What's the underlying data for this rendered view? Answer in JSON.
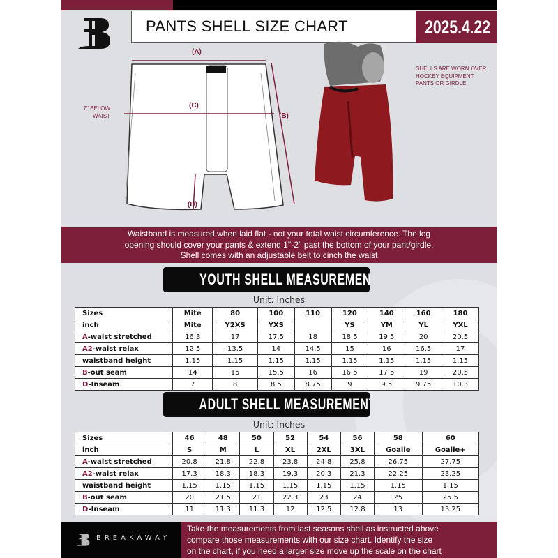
{
  "header": {
    "title": "PANTS SHELL SIZE CHART",
    "date": "2025.4.22"
  },
  "diagram": {
    "label_a": "(A)",
    "label_b": "(B)",
    "label_c": "(C)",
    "label_d": "(D)",
    "below_waist_note": "7'' BELOW WAIST"
  },
  "photo": {
    "note": "SHELLS ARE WORN OVER HOCKEY EQUIPMENT PANTS OR GIRDLE"
  },
  "info_band": {
    "lines": [
      "Waistband is measured when laid flat - not your total waist circumference. The leg",
      "opening should cover your pants & extend 1''-2'' past the bottom of your pant/girdle.",
      "Shell comes with an adjustable belt to cinch the waist"
    ]
  },
  "youth": {
    "heading": "YOUTH SHELL MEASUREMENTS",
    "unit": "Unit: Inches",
    "rows": [
      {
        "prefix": "",
        "label": "Sizes",
        "values": [
          "Mite",
          "80",
          "100",
          "110",
          "120",
          "140",
          "160",
          "180"
        ]
      },
      {
        "prefix": "",
        "label": "inch",
        "values": [
          "Mite",
          "Y2XS",
          "YXS",
          "",
          "YS",
          "YM",
          "YL",
          "YXL"
        ]
      },
      {
        "prefix": "A",
        "label": "-waist stretched",
        "values": [
          "16.3",
          "17",
          "17.5",
          "18",
          "18.5",
          "19.5",
          "20",
          "20.5"
        ]
      },
      {
        "prefix": "A2",
        "label": "-waist relax",
        "values": [
          "12.5",
          "13.5",
          "14",
          "14.5",
          "15",
          "16",
          "16.5",
          "17"
        ]
      },
      {
        "prefix": "",
        "label": "waistband height",
        "values": [
          "1.15",
          "1.15",
          "1.15",
          "1.15",
          "1.15",
          "1.15",
          "1.15",
          "1.15"
        ]
      },
      {
        "prefix": "B",
        "label": "-out seam",
        "values": [
          "14",
          "15",
          "15.5",
          "16",
          "16.5",
          "17.5",
          "19",
          "20.5"
        ]
      },
      {
        "prefix": "D",
        "label": "-Inseam",
        "values": [
          "7",
          "8",
          "8.5",
          "8.75",
          "9",
          "9.5",
          "9.75",
          "10.3"
        ]
      }
    ]
  },
  "adult": {
    "heading": "ADULT SHELL MEASUREMENTS",
    "unit": "Unit: Inches",
    "rows": [
      {
        "prefix": "",
        "label": "Sizes",
        "values": [
          "46",
          "48",
          "50",
          "52",
          "54",
          "56",
          "58",
          "60"
        ]
      },
      {
        "prefix": "",
        "label": "inch",
        "values": [
          "S",
          "M",
          "L",
          "XL",
          "2XL",
          "3XL",
          "Goalie",
          "Goalie+"
        ]
      },
      {
        "prefix": "A",
        "label": "-waist stretched",
        "values": [
          "20.8",
          "21.8",
          "22.8",
          "23.8",
          "24.8",
          "25.8",
          "26.75",
          "27.75"
        ]
      },
      {
        "prefix": "A2",
        "label": "-waist relax",
        "values": [
          "17.3",
          "18.3",
          "18.3",
          "19.3",
          "20.3",
          "21.3",
          "22.25",
          "23.25"
        ]
      },
      {
        "prefix": "",
        "label": "waistband height",
        "values": [
          "1.15",
          "1.15",
          "1.15",
          "1.15",
          "1.15",
          "1.15",
          "1.15",
          "1.15"
        ]
      },
      {
        "prefix": "B",
        "label": "-out seam",
        "values": [
          "20",
          "21.5",
          "21",
          "22.3",
          "23",
          "24",
          "25",
          "25.5"
        ]
      },
      {
        "prefix": "D",
        "label": "-Inseam",
        "values": [
          "11",
          "11.3",
          "11.3",
          "12",
          "12.5",
          "12.8",
          "13",
          "13.25"
        ]
      }
    ]
  },
  "footer": {
    "brand": "BREAKAWAY",
    "lines": [
      "Take the measurements from last seasons shell as instructed above",
      "compare those measurements  with our size chart. Identify the size",
      "on the chart, if you need a larger size move up the scale on the chart"
    ]
  },
  "colors": {
    "accent": "#7d1f3a",
    "background": "#dedfe3",
    "dark": "#0b0b0b"
  }
}
